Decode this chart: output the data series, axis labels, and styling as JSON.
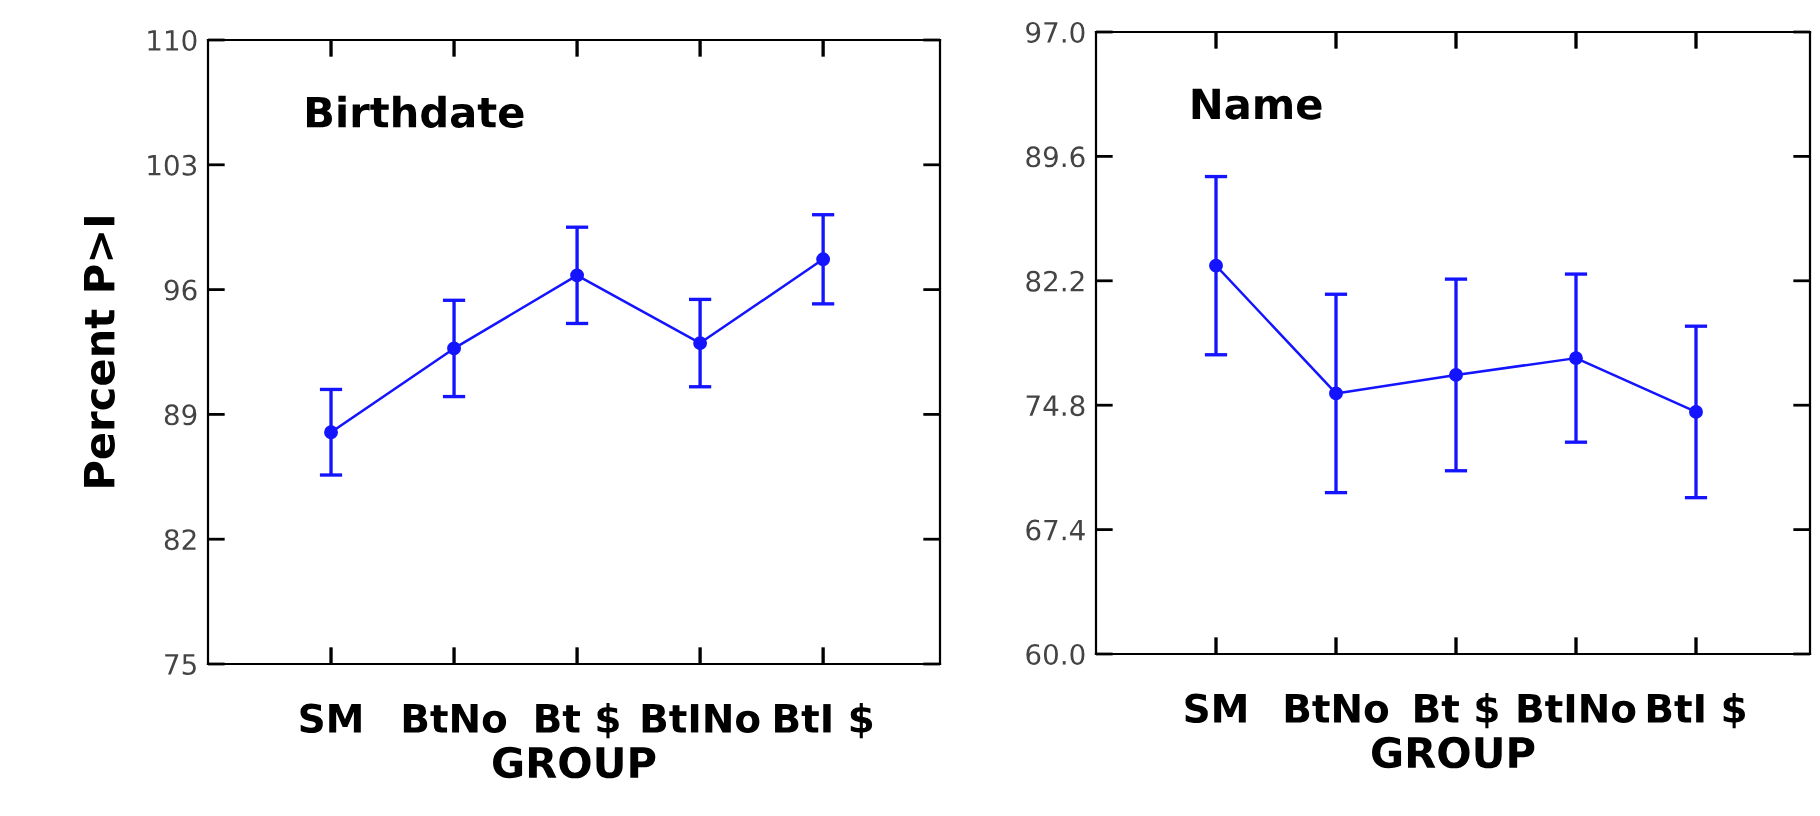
{
  "chart_data": [
    {
      "type": "line",
      "title": "Birthdate",
      "xlabel": "GROUP",
      "ylabel": "Percent P>I",
      "categories": [
        "SM",
        "BtNo",
        "Bt $",
        "BtINo",
        "BtI $"
      ],
      "series": [
        {
          "color": "#1414ff",
          "values": [
            88.0,
            92.7,
            96.8,
            93.0,
            97.7
          ],
          "errors": [
            2.4,
            2.7,
            2.7,
            2.45,
            2.5
          ]
        }
      ],
      "ylim": [
        75,
        110
      ],
      "yticks": [
        75,
        82,
        89,
        96,
        103,
        110
      ],
      "marker": "circle",
      "line_style": "solid",
      "grid": false,
      "legend": false
    },
    {
      "type": "line",
      "title": "Name",
      "xlabel": "GROUP",
      "categories": [
        "SM",
        "BtNo",
        "Bt $",
        "BtINo",
        "BtI $"
      ],
      "series": [
        {
          "color": "#1414ff",
          "values": [
            83.1,
            75.5,
            76.6,
            77.6,
            74.4
          ],
          "errors": [
            5.3,
            5.9,
            5.7,
            5.0,
            5.1
          ]
        }
      ],
      "ylim": [
        60,
        97
      ],
      "yticks": [
        {
          "value": 60,
          "label": "60.0"
        },
        {
          "value": 67.4,
          "label": "67.4"
        },
        {
          "value": 74.8,
          "label": "74.8"
        },
        {
          "value": 82.2,
          "label": "82.2"
        },
        {
          "value": 89.6,
          "label": "89.6"
        },
        {
          "value": 97,
          "label": "97.0"
        }
      ],
      "marker": "circle",
      "line_style": "solid",
      "grid": false,
      "legend": false
    }
  ]
}
